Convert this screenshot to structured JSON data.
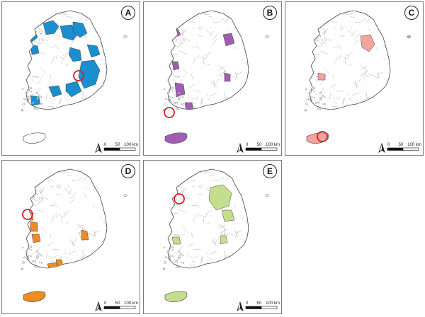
{
  "figure": {
    "panels": [
      {
        "label": "A",
        "color": "#1a8fd0",
        "circle_target": "central-east (Gyeongbuk)"
      },
      {
        "label": "B",
        "color": "#a05db3",
        "circle_target": "southwest coast (Jeonnam)"
      },
      {
        "label": "C",
        "color": "#f3a49b",
        "circle_target": "Jeju island"
      },
      {
        "label": "D",
        "color": "#f08a24",
        "circle_target": "west coast (Chungnam)"
      },
      {
        "label": "E",
        "color": "#c3df8e",
        "circle_target": "Seoul metropolitan area"
      }
    ],
    "scale": {
      "label_0": "0",
      "label_50": "50",
      "label_100": "100 km"
    },
    "north_symbol": "north-arrow-icon",
    "circle_color": "#d81f26"
  }
}
